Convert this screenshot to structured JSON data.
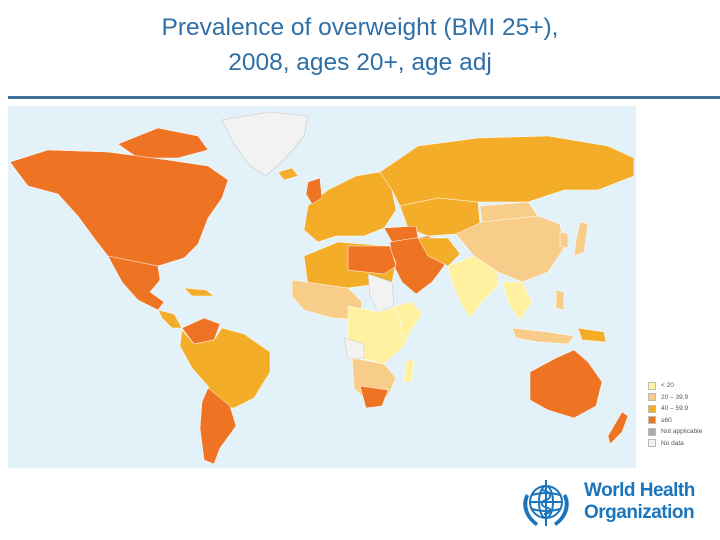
{
  "title": {
    "line1": "Prevalence of overweight (BMI 25+),",
    "line2": "2008, ages 20+, age adj"
  },
  "colors": {
    "ocean": "#e3f1f8",
    "title": "#2f6fa7",
    "rule": "#3f6f99",
    "logo": "#1b75bc"
  },
  "legend": {
    "items": [
      {
        "label": "< 20",
        "color": "#fff1a0"
      },
      {
        "label": "20 – 39.9",
        "color": "#f8cd8a"
      },
      {
        "label": "40 – 59.9",
        "color": "#f4ad28"
      },
      {
        "label": "≥60",
        "color": "#ee7424"
      },
      {
        "label": "Not applicable",
        "color": "#a9a9a9"
      },
      {
        "label": "No data",
        "color": "#f2f2f2"
      }
    ]
  },
  "logo": {
    "line1": "World Health",
    "line2": "Organization"
  }
}
